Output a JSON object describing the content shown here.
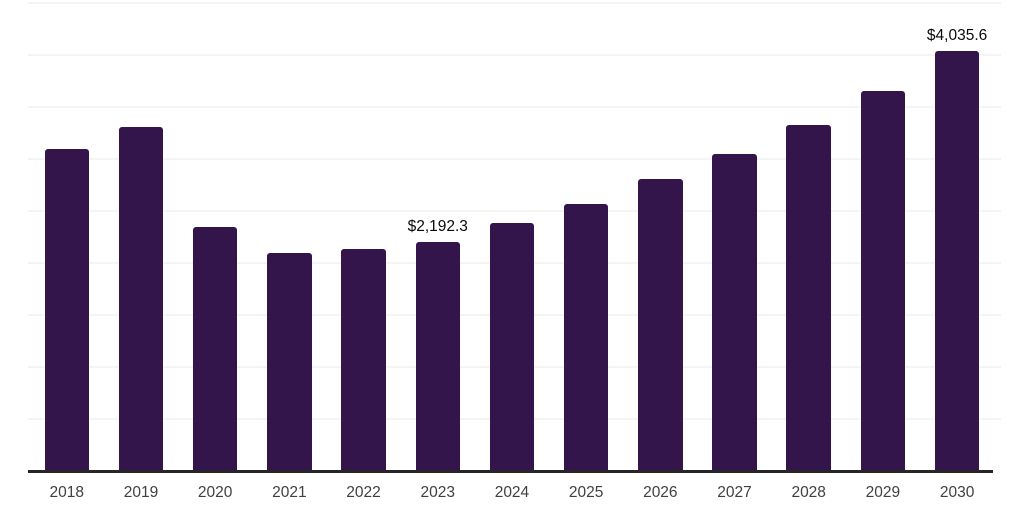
{
  "chart_data": {
    "type": "bar",
    "title": "",
    "xlabel": "",
    "ylabel": "",
    "categories": [
      "2018",
      "2019",
      "2020",
      "2021",
      "2022",
      "2023",
      "2024",
      "2025",
      "2026",
      "2027",
      "2028",
      "2029",
      "2030"
    ],
    "values": [
      3090,
      3305,
      2335,
      2087,
      2128,
      2192.3,
      2373,
      2564,
      2803,
      3041,
      3320,
      3645,
      4035.6
    ],
    "annotations": [
      {
        "category": "2023",
        "text": "$2,192.3"
      },
      {
        "category": "2030",
        "text": "$4,035.6"
      }
    ],
    "ylim": [
      0,
      4500
    ],
    "gridline_step": 500,
    "grid": "horizontal",
    "legend": "none",
    "y_axis_labels_visible": false,
    "bar_color": "#33154C",
    "axis_color": "#262626",
    "gridline_color": "#f4f4f4",
    "tick_label_color": "#404040",
    "data_label_color": "#0a0a0a"
  }
}
